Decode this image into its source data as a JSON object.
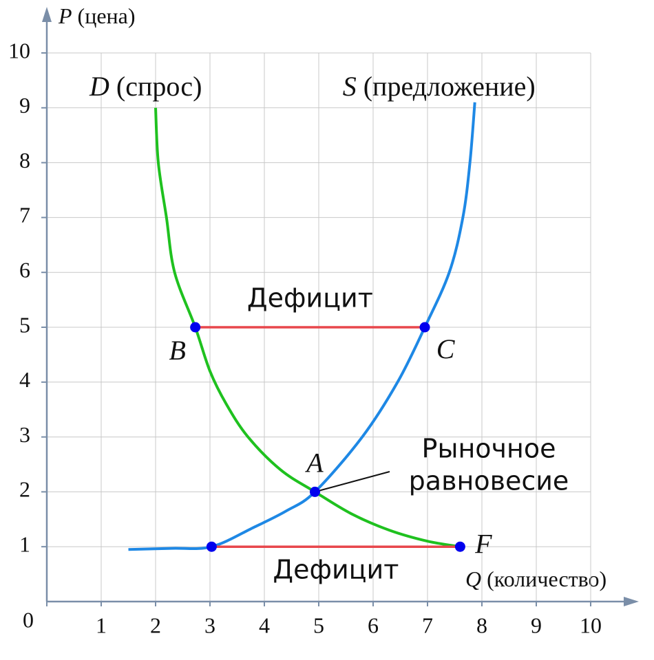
{
  "chart_data": {
    "type": "line",
    "x_label": {
      "symbol": "Q",
      "text": "(количество)"
    },
    "y_label": {
      "symbol": "P",
      "text": "(цена)"
    },
    "xlim": [
      0,
      10
    ],
    "ylim": [
      0,
      10
    ],
    "xticks": [
      0,
      1,
      2,
      3,
      4,
      5,
      6,
      7,
      8,
      9,
      10
    ],
    "yticks": [
      1,
      2,
      3,
      4,
      5,
      6,
      7,
      8,
      9,
      10
    ],
    "grid": true,
    "series": [
      {
        "name": "D",
        "description": "(спрос)",
        "color": "#1fc11f",
        "x": [
          2.0,
          2.05,
          2.2,
          2.35,
          2.73,
          3.0,
          3.3,
          3.7,
          4.3,
          4.93,
          5.6,
          6.3,
          7.0,
          7.6
        ],
        "values": [
          9.0,
          8.0,
          7.0,
          6.0,
          5.0,
          4.2,
          3.6,
          3.0,
          2.4,
          2.0,
          1.6,
          1.3,
          1.1,
          1.0
        ]
      },
      {
        "name": "S",
        "description": "(предложение)",
        "color": "#1e88e5",
        "x": [
          1.5,
          2.3,
          3.03,
          3.8,
          4.4,
          4.93,
          5.8,
          6.45,
          6.95,
          7.4,
          7.65,
          7.78,
          7.87
        ],
        "values": [
          0.95,
          0.97,
          1.0,
          1.35,
          1.65,
          2.0,
          3.0,
          4.0,
          5.0,
          6.0,
          7.0,
          8.0,
          9.1
        ]
      }
    ],
    "segments": [
      {
        "label": "Дефицит",
        "y": 5,
        "x": [
          2.73,
          6.95
        ],
        "color": "#e8474c"
      },
      {
        "label": "Дефицит",
        "y": 1,
        "x": [
          3.03,
          7.6
        ],
        "color": "#e8474c"
      }
    ],
    "points": [
      {
        "label": "A",
        "x": 4.93,
        "y": 2
      },
      {
        "label": "B",
        "x": 2.73,
        "y": 5
      },
      {
        "label": "C",
        "x": 6.95,
        "y": 5
      },
      {
        "label": "F",
        "x": 7.6,
        "y": 1
      },
      {
        "x": 3.03,
        "y": 1
      }
    ],
    "point_color": "#0000ee",
    "annotation": {
      "lines": [
        "Рыночное",
        "равновесие"
      ],
      "x": 4.93,
      "y": 2
    }
  }
}
